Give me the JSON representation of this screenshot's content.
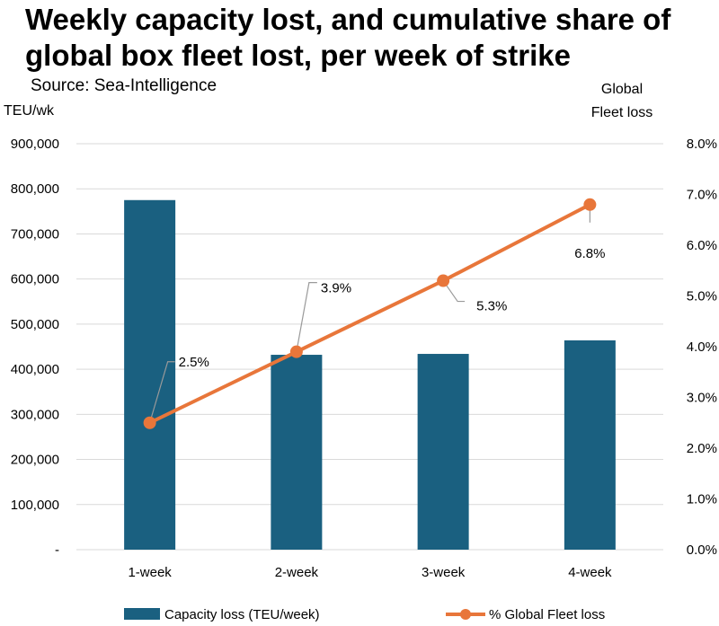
{
  "title": "Weekly capacity lost, and cumulative share of global box fleet lost, per week of strike",
  "source": "Source: Sea-Intelligence",
  "chart_data": {
    "type": "bar+line",
    "categories": [
      "1-week",
      "2-week",
      "3-week",
      "4-week"
    ],
    "bar_series": {
      "name": "Capacity loss (TEU/week)",
      "values": [
        775000,
        432000,
        434000,
        464000
      ],
      "color": "#1a6080"
    },
    "line_series": {
      "name": "% Global Fleet loss",
      "values": [
        2.5,
        3.9,
        5.3,
        6.8
      ],
      "labels": [
        "2.5%",
        "3.9%",
        "5.3%",
        "6.8%"
      ],
      "color": "#e8763a"
    },
    "y_left": {
      "label": "TEU/wk",
      "range": [
        0,
        900000
      ],
      "ticks": [
        0,
        100000,
        200000,
        300000,
        400000,
        500000,
        600000,
        700000,
        800000,
        900000
      ],
      "tick_labels": [
        "-",
        "100,000",
        "200,000",
        "300,000",
        "400,000",
        "500,000",
        "600,000",
        "700,000",
        "800,000",
        "900,000"
      ]
    },
    "y_right": {
      "label_line1": "Global",
      "label_line2": "Fleet loss",
      "range": [
        0,
        8
      ],
      "ticks": [
        0,
        1,
        2,
        3,
        4,
        5,
        6,
        7,
        8
      ],
      "tick_labels": [
        "0.0%",
        "1.0%",
        "2.0%",
        "3.0%",
        "4.0%",
        "5.0%",
        "6.0%",
        "7.0%",
        "8.0%"
      ]
    },
    "grid": true,
    "legend_position": "bottom"
  }
}
